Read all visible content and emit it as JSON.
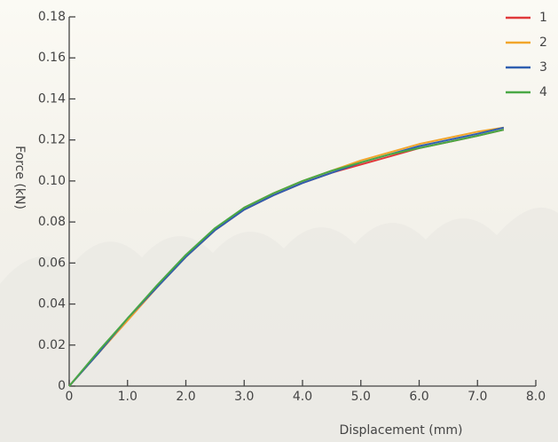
{
  "chart_data": {
    "type": "line",
    "x_label": "Displacement (mm)",
    "y_label": "Force (kN)",
    "x": [
      0,
      0.5,
      1,
      1.5,
      2,
      2.5,
      3,
      3.5,
      4,
      4.5,
      5,
      5.5,
      6,
      6.5,
      7,
      7.45
    ],
    "series": [
      {
        "name": "1",
        "color": "#e0393a",
        "values": [
          0,
          0.016,
          0.032,
          0.048,
          0.063,
          0.076,
          0.086,
          0.093,
          0.099,
          0.104,
          0.108,
          0.112,
          0.116,
          0.119,
          0.122,
          0.125
        ]
      },
      {
        "name": "2",
        "color": "#f2a52a",
        "values": [
          0,
          0.016,
          0.032,
          0.048,
          0.063,
          0.076,
          0.087,
          0.094,
          0.1,
          0.105,
          0.11,
          0.114,
          0.118,
          0.121,
          0.124,
          0.126
        ]
      },
      {
        "name": "3",
        "color": "#2f5fb0",
        "values": [
          0,
          0.016,
          0.033,
          0.048,
          0.063,
          0.076,
          0.086,
          0.093,
          0.099,
          0.104,
          0.109,
          0.113,
          0.117,
          0.12,
          0.123,
          0.126
        ]
      },
      {
        "name": "4",
        "color": "#4aa845",
        "values": [
          0,
          0.017,
          0.033,
          0.049,
          0.064,
          0.077,
          0.087,
          0.094,
          0.1,
          0.105,
          0.109,
          0.113,
          0.116,
          0.119,
          0.122,
          0.125
        ]
      }
    ],
    "xlim": [
      0,
      8
    ],
    "xticks": [
      0,
      {
        "value": 1,
        "label": "1.0"
      },
      {
        "value": 2,
        "label": "2.0"
      },
      {
        "value": 3,
        "label": "3.0"
      },
      {
        "value": 4,
        "label": "4.0"
      },
      {
        "value": 5,
        "label": "5.0"
      },
      {
        "value": 6,
        "label": "6.0"
      },
      {
        "value": 7,
        "label": "7.0"
      },
      {
        "value": 8,
        "label": "8.0"
      }
    ],
    "ylim": [
      0,
      0.18
    ],
    "yticks": [
      0,
      0.02,
      0.04,
      0.06,
      0.08,
      {
        "value": 0.1,
        "label": "0.10"
      },
      0.12,
      0.14,
      0.16,
      0.18
    ],
    "legend": "top-right"
  }
}
